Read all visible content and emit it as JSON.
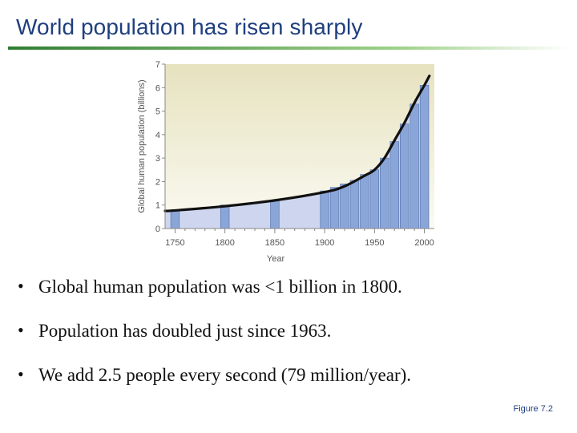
{
  "slide": {
    "title": "World population has risen sharply",
    "bullets": [
      "Global human population was <1 billion in 1800.",
      "Population has doubled just since 1963.",
      "We add 2.5 people every second (79 million/year)."
    ],
    "figure_ref": "Figure 7.2"
  },
  "chart_data": {
    "type": "bar",
    "title": "",
    "xlabel": "Year",
    "ylabel": "Global human population (billions)",
    "xlim": [
      1740,
      2010
    ],
    "ylim": [
      0,
      7
    ],
    "xticks": [
      1750,
      1800,
      1850,
      1900,
      1950,
      2000
    ],
    "yticks": [
      0,
      1,
      2,
      3,
      4,
      5,
      6,
      7
    ],
    "grid": false,
    "bars": {
      "x": [
        1750,
        1800,
        1850,
        1900,
        1910,
        1920,
        1930,
        1940,
        1950,
        1960,
        1970,
        1980,
        1990,
        2000
      ],
      "values": [
        0.8,
        1.0,
        1.2,
        1.6,
        1.75,
        1.9,
        2.05,
        2.3,
        2.5,
        3.0,
        3.7,
        4.45,
        5.3,
        6.1
      ]
    },
    "curve": {
      "x": [
        1740,
        1750,
        1800,
        1850,
        1900,
        1920,
        1940,
        1950,
        1960,
        1970,
        1980,
        1990,
        2000,
        2005
      ],
      "values": [
        0.75,
        0.77,
        0.95,
        1.2,
        1.55,
        1.8,
        2.25,
        2.5,
        3.0,
        3.75,
        4.5,
        5.35,
        6.1,
        6.5
      ]
    },
    "colors": {
      "bar": "#8aa5d8",
      "bar_edge": "#5b77b0",
      "band": "#cdd6ee",
      "background_top": "#e6e2bf",
      "background_bottom": "#fbfaf1",
      "curve": "#111111",
      "axis_text": "#555555"
    }
  }
}
